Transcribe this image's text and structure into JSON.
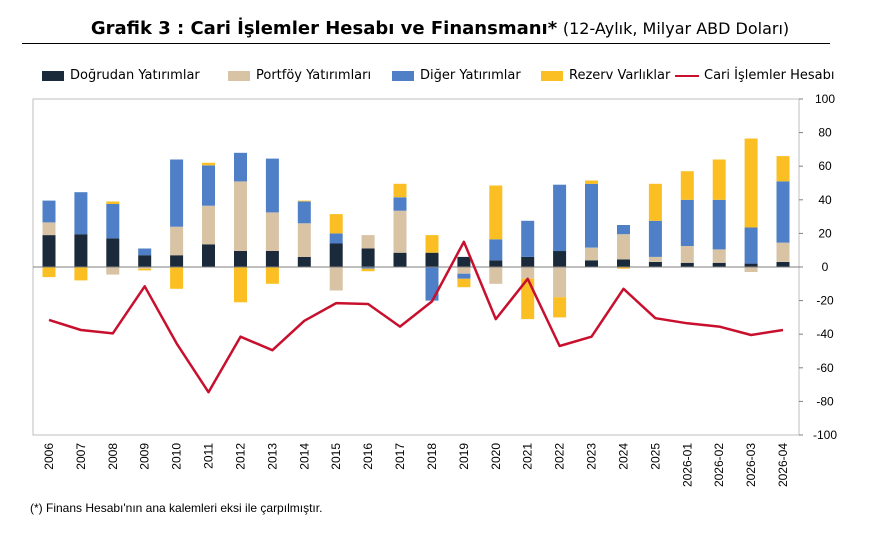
{
  "title": {
    "main": "Grafik 3 : Cari İşlemler Hesabı ve Finansmanı*",
    "sub": "(12-Aylık, Milyar ABD Doları)"
  },
  "footnote": "(*) Finans Hesabı'nın ana kalemleri eksi ile çarpılmıştır.",
  "chart_data": {
    "type": "bar",
    "stacked": true,
    "categories": [
      "2006",
      "2007",
      "2008",
      "2009",
      "2010",
      "2011",
      "2012",
      "2013",
      "2014",
      "2015",
      "2016",
      "2017",
      "2018",
      "2019",
      "2020",
      "2021",
      "2022",
      "2023",
      "2024",
      "2025",
      "2026-01",
      "2026-02",
      "2026-03",
      "2026-04"
    ],
    "yaxis_position": "right",
    "ylim": [
      -100,
      100
    ],
    "yticks": [
      -100,
      -80,
      -60,
      -40,
      -20,
      0,
      20,
      40,
      60,
      80,
      100
    ],
    "legend_position": "top",
    "grid": false,
    "series": [
      {
        "name": "Doğrudan Yatırımlar",
        "type": "bar",
        "color": "#1b2a3a",
        "values": [
          19,
          19.5,
          17,
          7,
          7,
          13.5,
          9.5,
          9.5,
          6,
          14,
          11,
          8.5,
          8.5,
          6,
          4,
          6,
          9.5,
          4,
          4.5,
          3,
          2.5,
          2.5,
          2,
          3
        ]
      },
      {
        "name": "Portföy Yatırımları",
        "type": "bar",
        "color": "#d8c3a5",
        "values": [
          7.5,
          0,
          -4.5,
          -1,
          17,
          23,
          41.5,
          23,
          20,
          -14,
          8,
          25,
          0,
          -4,
          -10,
          -7,
          -18,
          7.5,
          15,
          3,
          10,
          8,
          -3,
          11.5
        ]
      },
      {
        "name": "Diğer Yatırımlar",
        "type": "bar",
        "color": "#4f7fc7",
        "values": [
          13,
          25,
          20.5,
          4,
          40,
          24,
          17,
          32,
          13,
          6,
          -1,
          8,
          -20,
          -3,
          12.5,
          21.5,
          39.5,
          38,
          5.5,
          21.5,
          27.5,
          29.5,
          21.5,
          36.5
        ]
      },
      {
        "name": "Rezerv Varlıklar",
        "type": "bar",
        "color": "#fbbf24",
        "values": [
          -6,
          -8,
          1.5,
          -1,
          -13,
          1.5,
          -21,
          -10,
          0.5,
          11.5,
          -1.5,
          8,
          10.5,
          -5,
          32,
          -24,
          -12,
          2,
          -1,
          22,
          17,
          24,
          53,
          15
        ]
      },
      {
        "name": "Cari İşlemler Hesabı",
        "type": "line",
        "color": "#c8102e",
        "values": [
          -31.5,
          -37.5,
          -39.5,
          -11.5,
          -45.5,
          -74.5,
          -41.5,
          -49.5,
          -32,
          -21.5,
          -22,
          -35.5,
          -20.5,
          15,
          -31,
          -7,
          -47,
          -41.5,
          -13,
          -30.5,
          -33.5,
          -35.5,
          -40.5,
          -37.5
        ]
      }
    ]
  }
}
